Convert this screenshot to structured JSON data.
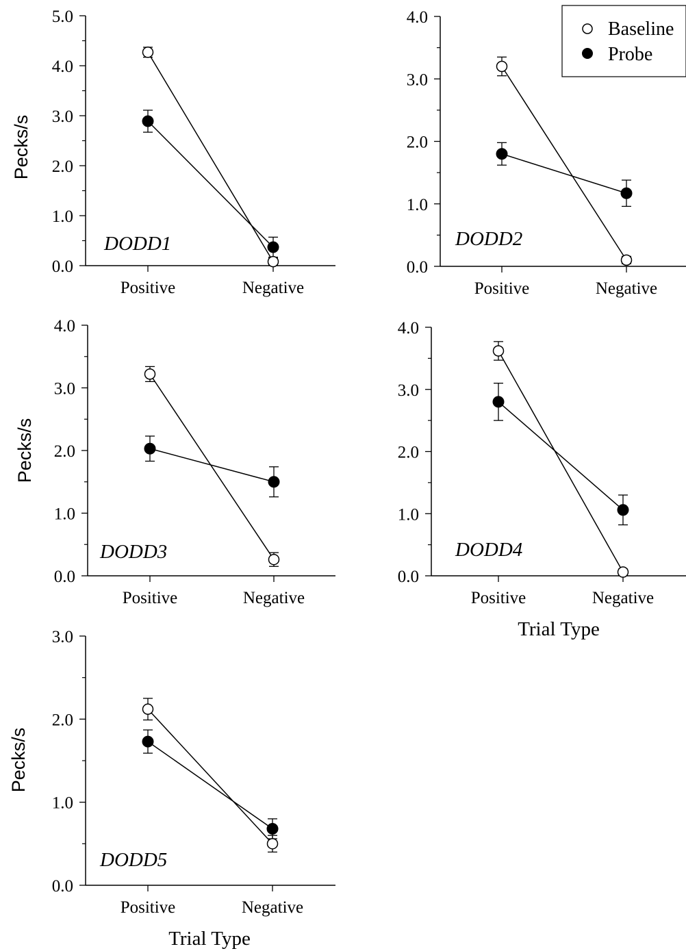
{
  "legend": {
    "entries": [
      {
        "label": "Baseline",
        "marker": "open-circle"
      },
      {
        "label": "Probe",
        "marker": "filled-circle"
      }
    ],
    "placement": "top-right"
  },
  "colors": {
    "ink": "#000000",
    "background": "#ffffff"
  },
  "chart_data": [
    {
      "type": "line",
      "panel_label": "DODD1",
      "categories": [
        "Positive",
        "Negative"
      ],
      "ylabel": "Pecks/s",
      "xlabel": "",
      "ylim": [
        0,
        5
      ],
      "yticks": [
        "0.0",
        "1.0",
        "2.0",
        "3.0",
        "4.0",
        "5.0"
      ],
      "series": [
        {
          "name": "Baseline",
          "values": [
            4.27,
            0.08
          ],
          "errors": [
            0.1,
            0.07
          ]
        },
        {
          "name": "Probe",
          "values": [
            2.89,
            0.37
          ],
          "errors": [
            0.22,
            0.2
          ]
        }
      ]
    },
    {
      "type": "line",
      "panel_label": "DODD2",
      "categories": [
        "Positive",
        "Negative"
      ],
      "ylabel": "",
      "xlabel": "",
      "ylim": [
        0,
        4
      ],
      "yticks": [
        "0.0",
        "1.0",
        "2.0",
        "3.0",
        "4.0"
      ],
      "series": [
        {
          "name": "Baseline",
          "values": [
            3.2,
            0.1
          ],
          "errors": [
            0.15,
            0.06
          ]
        },
        {
          "name": "Probe",
          "values": [
            1.8,
            1.17
          ],
          "errors": [
            0.18,
            0.21
          ]
        }
      ]
    },
    {
      "type": "line",
      "panel_label": "DODD3",
      "categories": [
        "Positive",
        "Negative"
      ],
      "ylabel": "Pecks/s",
      "xlabel": "",
      "ylim": [
        0,
        4
      ],
      "yticks": [
        "0.0",
        "1.0",
        "2.0",
        "3.0",
        "4.0"
      ],
      "series": [
        {
          "name": "Baseline",
          "values": [
            3.22,
            0.26
          ],
          "errors": [
            0.12,
            0.11
          ]
        },
        {
          "name": "Probe",
          "values": [
            2.03,
            1.5
          ],
          "errors": [
            0.2,
            0.24
          ]
        }
      ]
    },
    {
      "type": "line",
      "panel_label": "DODD4",
      "categories": [
        "Positive",
        "Negative"
      ],
      "ylabel": "",
      "xlabel": "Trial Type",
      "ylim": [
        0,
        4
      ],
      "yticks": [
        "0.0",
        "1.0",
        "2.0",
        "3.0",
        "4.0"
      ],
      "series": [
        {
          "name": "Baseline",
          "values": [
            3.62,
            0.06
          ],
          "errors": [
            0.15,
            0.05
          ]
        },
        {
          "name": "Probe",
          "values": [
            2.8,
            1.06
          ],
          "errors": [
            0.3,
            0.24
          ]
        }
      ]
    },
    {
      "type": "line",
      "panel_label": "DODD5",
      "categories": [
        "Positive",
        "Negative"
      ],
      "ylabel": "Pecks/s",
      "xlabel": "Trial Type",
      "ylim": [
        0,
        3
      ],
      "yticks": [
        "0.0",
        "1.0",
        "2.0",
        "3.0"
      ],
      "series": [
        {
          "name": "Baseline",
          "values": [
            2.12,
            0.5
          ],
          "errors": [
            0.13,
            0.1
          ]
        },
        {
          "name": "Probe",
          "values": [
            1.73,
            0.68
          ],
          "errors": [
            0.14,
            0.12
          ]
        }
      ]
    }
  ]
}
